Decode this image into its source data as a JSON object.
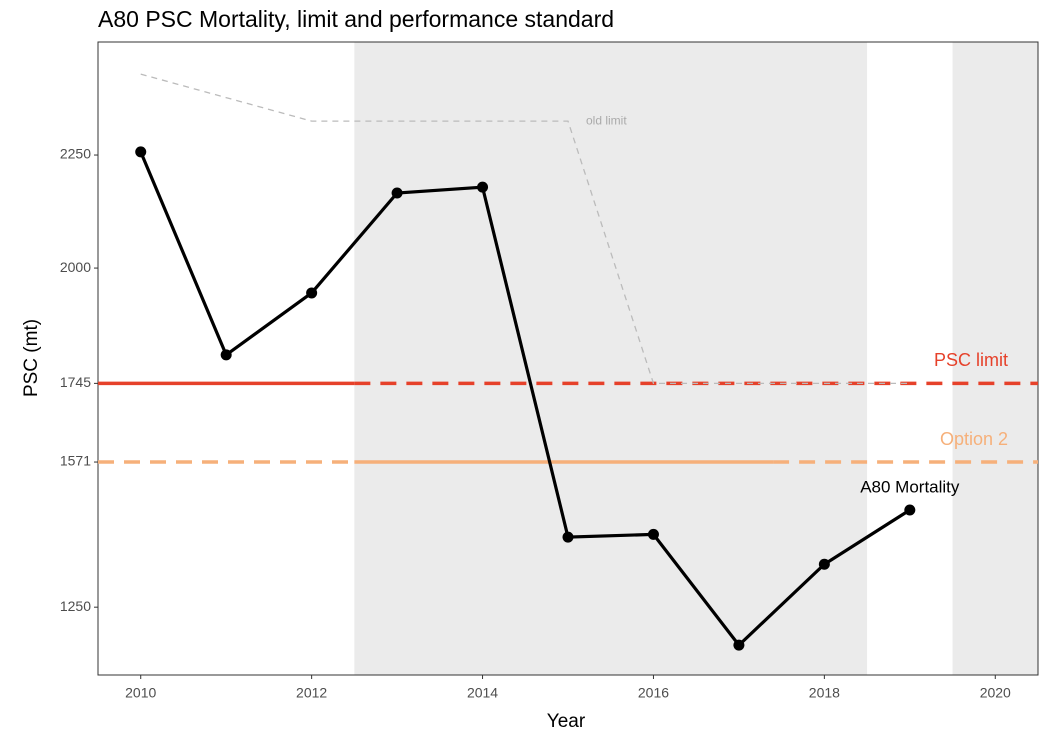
{
  "chart_data": {
    "type": "line",
    "title": "A80 PSC Mortality, limit and performance standard",
    "xlabel": "Year",
    "ylabel": "PSC (mt)",
    "xlim": [
      2009.5,
      2020.5
    ],
    "ylim": [
      1100,
      2500
    ],
    "xticks": [
      2010,
      2012,
      2014,
      2016,
      2018,
      2020
    ],
    "yticks": [
      1250,
      1571,
      1745,
      2000,
      2250
    ],
    "shaded": [
      [
        2012.5,
        2018.5
      ],
      [
        2019.5,
        2020.5
      ]
    ],
    "series": [
      {
        "name": "A80 Mortality",
        "color": "#000000",
        "x": [
          2010,
          2011,
          2012,
          2013,
          2014,
          2015,
          2016,
          2017,
          2018,
          2019
        ],
        "values": [
          2257,
          1808,
          1945,
          2166,
          2179,
          1405,
          1411,
          1166,
          1345,
          1465
        ]
      },
      {
        "name": "old limit",
        "color": "#bbbbbb",
        "x": [
          2010,
          2012,
          2015,
          2016,
          2019
        ],
        "values": [
          2429,
          2325,
          2325,
          1745,
          1745
        ]
      }
    ],
    "hlines": [
      {
        "name": "PSC limit",
        "value": 1745,
        "color": "#e6412a",
        "segments": [
          {
            "x": [
              2009.5,
              2012.5
            ],
            "style": "solid"
          },
          {
            "x": [
              2012.5,
              2020.5
            ],
            "style": "dashed"
          }
        ]
      },
      {
        "name": "Option 2",
        "value": 1571,
        "color": "#f6b07a",
        "segments": [
          {
            "x": [
              2009.5,
              2012.5
            ],
            "style": "dashed"
          },
          {
            "x": [
              2012.5,
              2017.4
            ],
            "style": "solid"
          },
          {
            "x": [
              2017.4,
              2020.5
            ],
            "style": "dashed"
          }
        ]
      }
    ]
  }
}
